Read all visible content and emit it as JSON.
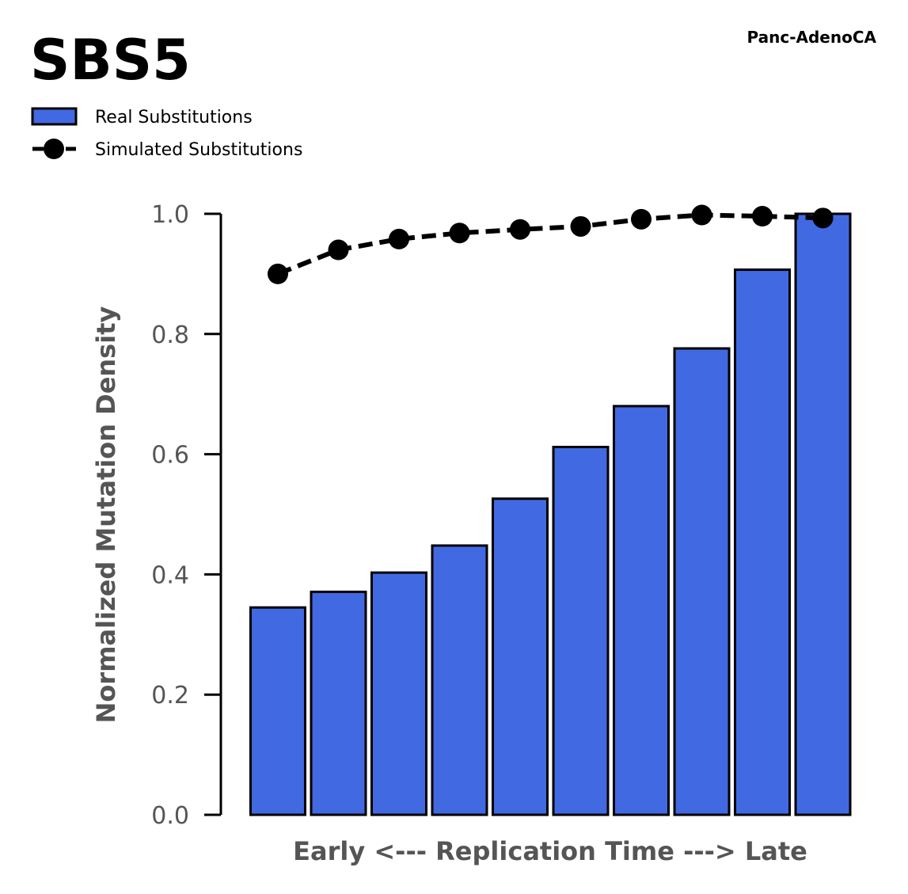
{
  "chart_data": {
    "type": "bar",
    "title": "SBS5",
    "subtitle": "Panc-AdenoCA",
    "xlabel": "Early <--- Replication Time ---> Late",
    "ylabel": "Normalized Mutation Density",
    "ylim": [
      0,
      1
    ],
    "yticks": [
      "0.0",
      "0.2",
      "0.4",
      "0.6",
      "0.8",
      "1.0"
    ],
    "grid": false,
    "legend_position": "top-left",
    "bar_color": "#4169E1",
    "bar_edge_color": "#000000",
    "line_color": "#000000",
    "x": [
      1,
      2,
      3,
      4,
      5,
      6,
      7,
      8,
      9,
      10
    ],
    "series": [
      {
        "name": "Real Substitutions",
        "type": "bar",
        "values": [
          0.345,
          0.371,
          0.403,
          0.448,
          0.526,
          0.612,
          0.68,
          0.776,
          0.907,
          1.0
        ]
      },
      {
        "name": "Simulated Substitutions",
        "type": "line",
        "style": "dashed",
        "marker": "circle",
        "values": [
          0.9,
          0.94,
          0.958,
          0.968,
          0.974,
          0.979,
          0.991,
          0.998,
          0.996,
          0.993
        ]
      }
    ]
  }
}
